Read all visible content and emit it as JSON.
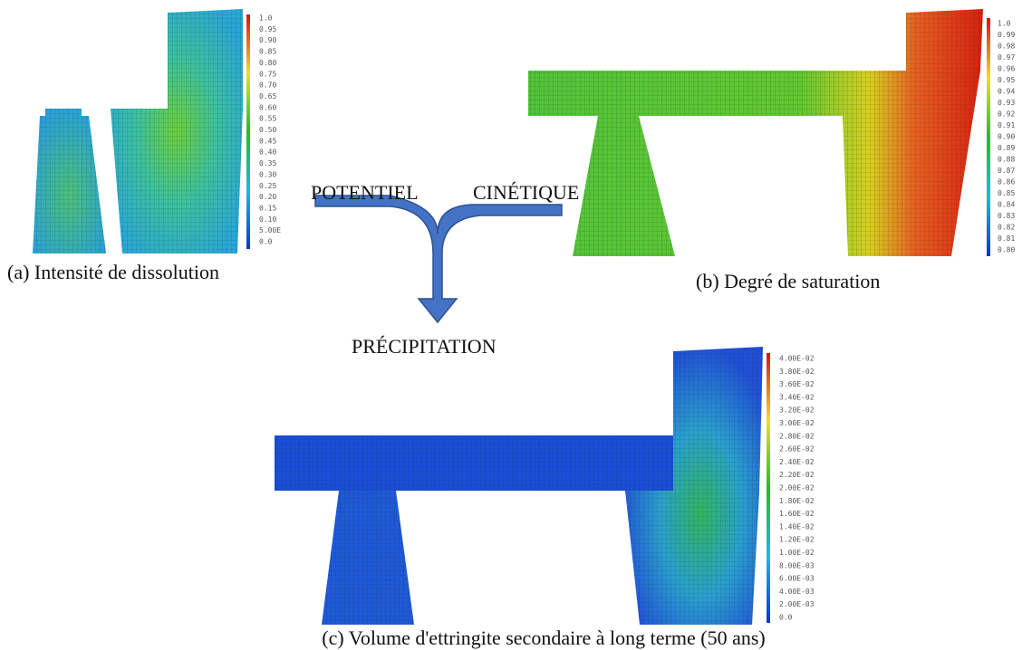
{
  "panels": [
    {
      "colorbar_labels": [
        "1.0",
        "0.95",
        "0.90",
        "0.85",
        "0.80",
        "0.75",
        "0.70",
        "0.65",
        "0.60",
        "0.55",
        "0.50",
        "0.45",
        "0.40",
        "0.35",
        "0.30",
        "0.25",
        "0.20",
        "0.15",
        "0.10",
        "5.00E",
        "0.0"
      ],
      "caption": "(a) Intensité de dissolution"
    },
    {
      "colorbar_labels": [
        "1.0",
        "0.99",
        "0.98",
        "0.97",
        "0.96",
        "0.95",
        "0.94",
        "0.93",
        "0.92",
        "0.91",
        "0.90",
        "0.89",
        "0.88",
        "0.87",
        "0.86",
        "0.85",
        "0.84",
        "0.83",
        "0.82",
        "0.81",
        "0.80"
      ],
      "caption": "(b) Degré de saturation"
    },
    {
      "colorbar_labels": [
        "4.00E-02",
        "3.80E-02",
        "3.60E-02",
        "3.40E-02",
        "3.20E-02",
        "3.00E-02",
        "2.80E-02",
        "2.60E-02",
        "2.40E-02",
        "2.20E-02",
        "2.00E-02",
        "1.80E-02",
        "1.60E-02",
        "1.40E-02",
        "1.20E-02",
        "1.00E-02",
        "8.00E-03",
        "6.00E-03",
        "4.00E-03",
        "2.00E-03",
        "0.0"
      ],
      "caption": "(c) Volume d'ettringite secondaire à long terme (50 ans)"
    }
  ],
  "arrows": {
    "left": "POTENTIEL",
    "right": "CINÉTIQUE",
    "result": "PRÉCIPITATION"
  }
}
